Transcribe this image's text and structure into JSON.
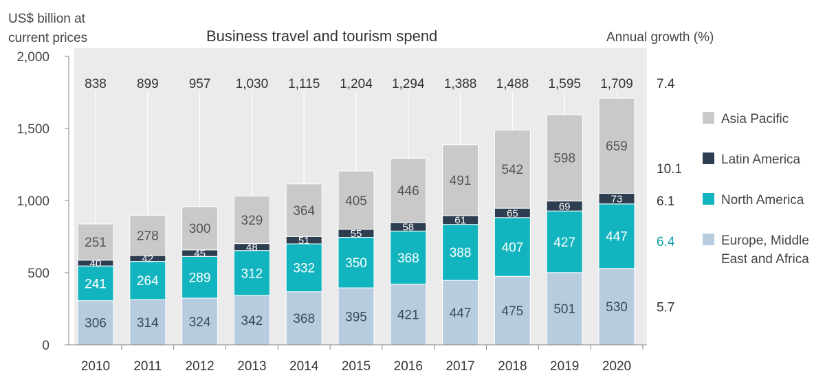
{
  "header": {
    "unit_label": "US$ billion at current prices",
    "growth_label": "Annual growth (%)"
  },
  "chart_data": {
    "type": "bar",
    "stacked": true,
    "title": "Business travel and tourism spend",
    "ylabel": "US$ billion at current prices",
    "ylim": [
      0,
      2000
    ],
    "yticks": [
      "0",
      "500",
      "1,000",
      "1,500",
      "2,000"
    ],
    "ytick_values": [
      0,
      500,
      1000,
      1500,
      2000
    ],
    "categories": [
      "2010",
      "2011",
      "2012",
      "2013",
      "2014",
      "2015",
      "2016",
      "2017",
      "2018",
      "2019",
      "2020"
    ],
    "totals": [
      "838",
      "899",
      "957",
      "1,030",
      "1,115",
      "1,204",
      "1,294",
      "1,388",
      "1,488",
      "1,595",
      "1,709"
    ],
    "total_values": [
      838,
      899,
      957,
      1030,
      1115,
      1204,
      1294,
      1388,
      1488,
      1595,
      1709
    ],
    "series": [
      {
        "name": "Europe, Middle East and Africa",
        "color": "#b8cce0",
        "label_color": "#3a4a5a",
        "values": [
          306,
          314,
          324,
          342,
          368,
          395,
          421,
          447,
          475,
          501,
          530
        ],
        "growth": "5.7"
      },
      {
        "name": "North America",
        "color": "#12b5bf",
        "label_color": "#ffffff",
        "values": [
          241,
          264,
          289,
          312,
          332,
          350,
          368,
          388,
          407,
          427,
          447
        ],
        "growth": "6.4"
      },
      {
        "name": "Latin America",
        "color": "#2d3e50",
        "label_color": "#ffffff",
        "values": [
          40,
          42,
          45,
          48,
          51,
          55,
          58,
          61,
          65,
          69,
          73
        ],
        "growth": "6.1"
      },
      {
        "name": "Asia Pacific",
        "color": "#c9c9c9",
        "label_color": "#555555",
        "values": [
          251,
          278,
          300,
          329,
          364,
          405,
          446,
          491,
          542,
          598,
          659
        ],
        "growth": "10.1"
      }
    ],
    "total_growth": "7.4",
    "legend": [
      "Asia Pacific",
      "Latin America",
      "North America",
      "Europe, Middle East and Africa"
    ],
    "legend_colors": [
      "#c9c9c9",
      "#2d3e50",
      "#12b5bf",
      "#b8cce0"
    ],
    "background_shading": "#ebebeb",
    "grid": false
  }
}
